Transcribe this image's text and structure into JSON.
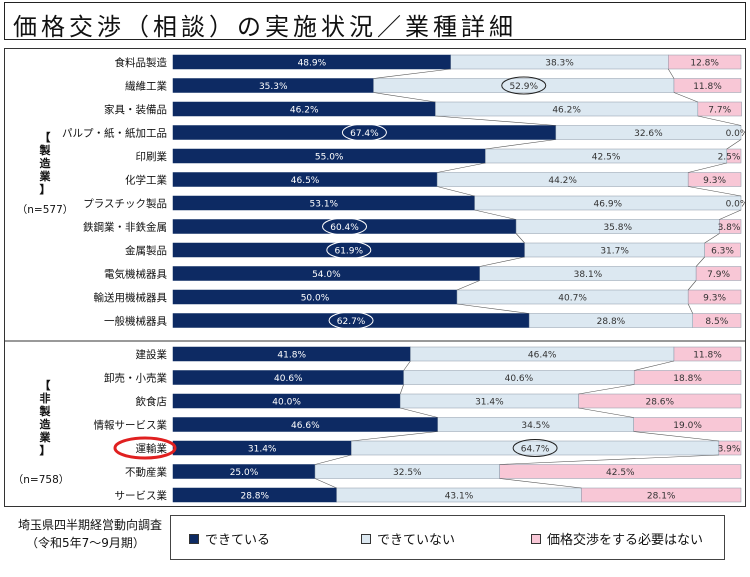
{
  "title": "価格交渉（相談）の実施状況／業種詳細",
  "groups": {
    "manufacturing": {
      "label": "【製造業】",
      "n": "（n=577）"
    },
    "non_manufacturing": {
      "label": "【非製造業】",
      "n": "（n=758）"
    }
  },
  "source": {
    "line1": "埼玉県四半期経営動向調査",
    "line2": "（令和5年7〜9月期）"
  },
  "legend": [
    {
      "label": "できている",
      "color": "#0d2a63"
    },
    {
      "label": "できていない",
      "color": "#dce8f1"
    },
    {
      "label": "価格交渉をする必要はない",
      "color": "#f8c7d6"
    }
  ],
  "colors": {
    "done": "#0d2a63",
    "not_done": "#dce8f1",
    "unnecessary": "#f8c7d6",
    "highlight": "#e02020"
  },
  "chart_data": {
    "type": "bar",
    "orientation": "horizontal",
    "stacked": true,
    "percent": true,
    "categories": [
      "食料品製造",
      "繊維工業",
      "家具・装備品",
      "パルプ・紙・紙加工品",
      "印刷業",
      "化学工業",
      "プラスチック製品",
      "鉄鋼業・非鉄金属",
      "金属製品",
      "電気機械器具",
      "輸送用機械器具",
      "一般機械器具",
      "建設業",
      "卸売・小売業",
      "飲食店",
      "情報サービス業",
      "運輸業",
      "不動産業",
      "サービス業"
    ],
    "series": [
      {
        "name": "できている",
        "values": [
          48.9,
          35.3,
          46.2,
          67.4,
          55.0,
          46.5,
          53.1,
          60.4,
          61.9,
          54.0,
          50.0,
          62.7,
          41.8,
          40.6,
          40.0,
          46.6,
          31.4,
          25.0,
          28.8
        ]
      },
      {
        "name": "できていない",
        "values": [
          38.3,
          52.9,
          46.2,
          32.6,
          42.5,
          44.2,
          46.9,
          35.8,
          31.7,
          38.1,
          40.7,
          28.8,
          46.4,
          40.6,
          31.4,
          34.5,
          64.7,
          32.5,
          43.1
        ]
      },
      {
        "name": "価格交渉をする必要はない",
        "values": [
          12.8,
          11.8,
          7.7,
          0.0,
          2.5,
          9.3,
          0.0,
          3.8,
          6.3,
          7.9,
          9.3,
          8.5,
          11.8,
          18.8,
          28.6,
          19.0,
          3.9,
          42.5,
          28.1
        ]
      }
    ],
    "group_split_index": 12,
    "circled_values": [
      {
        "category": "繊維工業",
        "series": 1
      },
      {
        "category": "パルプ・紙・紙加工品",
        "series": 0
      },
      {
        "category": "鉄鋼業・非鉄金属",
        "series": 0
      },
      {
        "category": "金属製品",
        "series": 0
      },
      {
        "category": "一般機械器具",
        "series": 0
      },
      {
        "category": "運輸業",
        "series": 1
      }
    ],
    "highlighted_category": "運輸業",
    "xlim": [
      0,
      100
    ]
  }
}
